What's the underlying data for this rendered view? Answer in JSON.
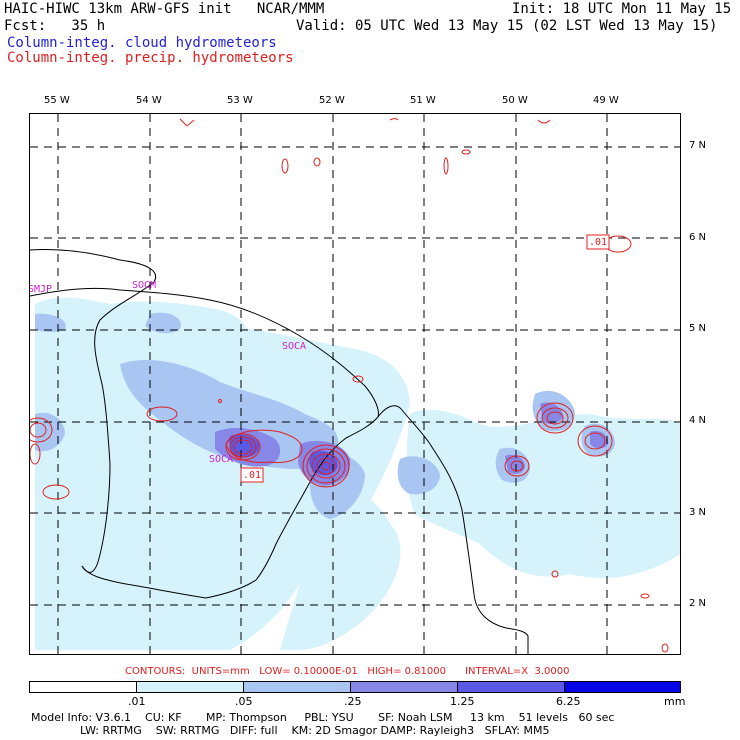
{
  "header": {
    "line1_left": "HAIC-HIWC 13km ARW-GFS init   NCAR/MMM",
    "line1_right": "Init: 18 UTC Mon 11 May 15",
    "line2_left": "Fcst:   35 h",
    "line2_right": "Valid: 05 UTC Wed 13 May 15 (02 LST Wed 13 May 15)",
    "field1": "Column-integ. cloud hydrometeors",
    "field2": "Column-integ. precip. hydrometeors"
  },
  "map": {
    "lon_labels": [
      "55 W",
      "54 W",
      "53 W",
      "52 W",
      "51 W",
      "50 W",
      "49 W"
    ],
    "lat_labels": [
      "7 N",
      "6 N",
      "5 N",
      "4 N",
      "3 N",
      "2 N"
    ],
    "stations": [
      "SMJP",
      "SOCM",
      "SOCA",
      "SOCA"
    ],
    "contour_labels": [
      ".01",
      ".01"
    ]
  },
  "legend": {
    "contours_text": "CONTOURS:  UNITS=mm   LOW= 0.10000E-01   HIGH= 0.81000      INTERVAL=X  3.0000",
    "tick_labels": [
      ".01",
      ".05",
      ".25",
      "1.25",
      "6.25"
    ],
    "units": "mm",
    "colors": [
      "#ffffff",
      "#d6f3fb",
      "#a9c6f3",
      "#8787e8",
      "#5a5ae6",
      "#2d2de6",
      "#0505e6"
    ]
  },
  "footer": {
    "line1": "Model Info: V3.6.1    CU: KF       MP: Thompson     PBL: YSU       SF: Noah LSM     13 km    51 levels   60 sec",
    "line2": "              LW: RRTMG    SW: RRTMG   DIFF: full    KM: 2D Smagor DAMP: Rayleigh3   SFLAY: MM5"
  }
}
